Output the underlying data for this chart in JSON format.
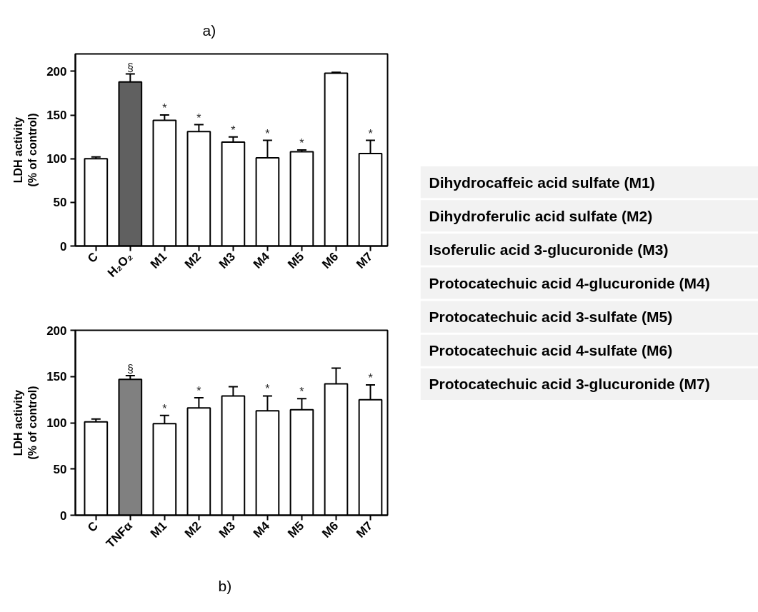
{
  "chart_data": [
    {
      "type": "bar",
      "title": "a)",
      "ylabel": "LDH activity\n(% of control)",
      "categories": [
        "C",
        "H₂O₂",
        "M1",
        "M2",
        "M3",
        "M4",
        "M5",
        "M6",
        "M7"
      ],
      "values": [
        100,
        188,
        144,
        131,
        119,
        101,
        108,
        198,
        106
      ],
      "colors": [
        "#ffffff",
        "#606060",
        "#ffffff",
        "#ffffff",
        "#ffffff",
        "#ffffff",
        "#ffffff",
        "#ffffff",
        "#ffffff"
      ],
      "errors": [
        [
          100,
          102
        ],
        [
          188,
          197
        ],
        [
          144,
          150
        ],
        [
          131,
          139
        ],
        [
          119,
          125
        ],
        [
          101,
          121
        ],
        [
          108,
          110
        ],
        [
          198,
          199
        ],
        [
          106,
          121
        ]
      ],
      "ylim": [
        0,
        220
      ],
      "yticks": [
        0,
        50,
        100,
        150,
        200
      ],
      "annotations": [
        {
          "text": "§",
          "x": "H₂O₂",
          "y": 197
        },
        {
          "text": "*",
          "x": "M1",
          "y": 150
        },
        {
          "text": "*",
          "x": "M2",
          "y": 139
        },
        {
          "text": "*",
          "x": "M3",
          "y": 125
        },
        {
          "text": "*",
          "x": "M4",
          "y": 121
        },
        {
          "text": "*",
          "x": "M5",
          "y": 110
        },
        {
          "text": "*",
          "x": "M7",
          "y": 121
        }
      ]
    },
    {
      "type": "bar",
      "title": "b)",
      "ylabel": "LDH activity\n(% of control)",
      "categories": [
        "C",
        "TNFα",
        "M1",
        "M2",
        "M3",
        "M4",
        "M5",
        "M6",
        "M7"
      ],
      "values": [
        101,
        147,
        99,
        116,
        129,
        113,
        114,
        142,
        125
      ],
      "colors": [
        "#ffffff",
        "#808080",
        "#ffffff",
        "#ffffff",
        "#ffffff",
        "#ffffff",
        "#ffffff",
        "#ffffff",
        "#ffffff"
      ],
      "errors": [
        [
          101,
          104
        ],
        [
          147,
          151
        ],
        [
          99,
          108
        ],
        [
          116,
          127
        ],
        [
          129,
          139
        ],
        [
          113,
          129
        ],
        [
          114,
          126
        ],
        [
          142,
          159
        ],
        [
          125,
          141
        ]
      ],
      "ylim": [
        0,
        200
      ],
      "yticks": [
        0,
        50,
        100,
        150,
        200
      ],
      "annotations": [
        {
          "text": "§",
          "x": "TNFα",
          "y": 151
        },
        {
          "text": "*",
          "x": "M1",
          "y": 108
        },
        {
          "text": "*",
          "x": "M2",
          "y": 127
        },
        {
          "text": "*",
          "x": "M4",
          "y": 129
        },
        {
          "text": "*",
          "x": "M5",
          "y": 126
        },
        {
          "text": "*",
          "x": "M7",
          "y": 141
        }
      ]
    },
    {
      "type": "other",
      "annotations": [
        "Dihydrocaffeic acid  sulfate (M1)",
        "Dihydroferulic acid  sulfate (M2)",
        "Isoferulic acid 3-glucuronide (M3)",
        "Protocatechuic acid 4-glucuronide  (M4)",
        "Protocatechuic acid 3-sulfate (M5)",
        "Protocatechuic acid 4-sulfate (M6)",
        "Protocatechuic acid 3-glucuronide (M7)"
      ]
    }
  ]
}
